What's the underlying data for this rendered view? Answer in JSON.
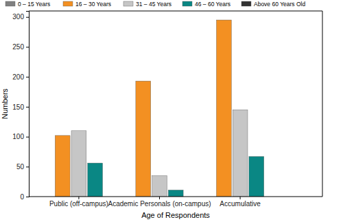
{
  "chart_data": {
    "type": "bar",
    "x_label": "Age of Respondents",
    "y_label": "Numbers",
    "categories": [
      "Public (off-campus)",
      "Academic Personals (on-campus)",
      "Accumulative"
    ],
    "series": [
      {
        "name": "0 – 15 Years",
        "color": "#808080",
        "values": [
          0,
          0,
          0
        ]
      },
      {
        "name": "16 – 30 Years",
        "color": "#f39022",
        "values": [
          102,
          193,
          295
        ]
      },
      {
        "name": "31 – 45 Years",
        "color": "#c6c6c6",
        "values": [
          110,
          35,
          145
        ]
      },
      {
        "name": "46 – 60 Years",
        "color": "#0a8784",
        "values": [
          56,
          11,
          67
        ]
      },
      {
        "name": "Above 60 Years Old",
        "color": "#333333",
        "values": [
          0,
          0,
          0
        ]
      }
    ],
    "ylim": [
      0,
      310
    ],
    "yticks": [
      0,
      50,
      100,
      150,
      200,
      250,
      300
    ],
    "legend": "top"
  }
}
